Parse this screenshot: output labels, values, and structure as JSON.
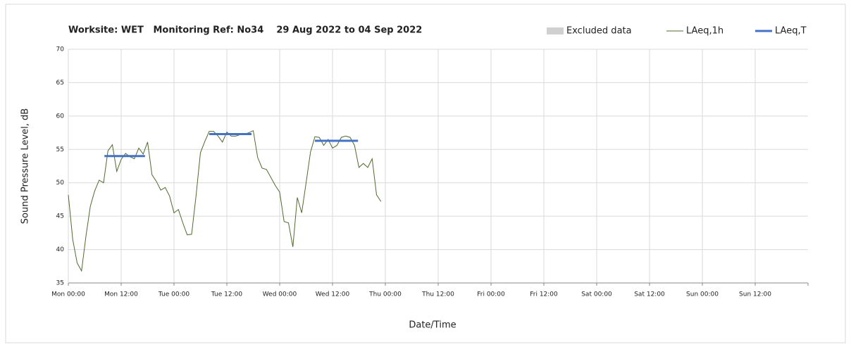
{
  "chart_data": {
    "type": "line",
    "title": "Worksite: WET   Monitoring Ref: No34    29 Aug 2022 to 04 Sep 2022",
    "xlabel": "Date/Time",
    "ylabel": "Sound Pressure Level, dB",
    "xlim": [
      0,
      168
    ],
    "ylim": [
      35,
      70
    ],
    "yticks": [
      35,
      40,
      45,
      50,
      55,
      60,
      65,
      70
    ],
    "xticks": [
      {
        "value": 0,
        "label": "Mon 00:00"
      },
      {
        "value": 12,
        "label": "Mon 12:00"
      },
      {
        "value": 24,
        "label": "Tue 00:00"
      },
      {
        "value": 36,
        "label": "Tue 12:00"
      },
      {
        "value": 48,
        "label": "Wed 00:00"
      },
      {
        "value": 60,
        "label": "Wed 12:00"
      },
      {
        "value": 72,
        "label": "Thu 00:00"
      },
      {
        "value": 84,
        "label": "Thu 12:00"
      },
      {
        "value": 96,
        "label": "Fri 00:00"
      },
      {
        "value": 108,
        "label": "Fri 12:00"
      },
      {
        "value": 120,
        "label": "Sat 00:00"
      },
      {
        "value": 132,
        "label": "Sat 12:00"
      },
      {
        "value": 144,
        "label": "Sun 00:00"
      },
      {
        "value": 156,
        "label": "Sun 12:00"
      }
    ],
    "grid": true,
    "legend": "top-right",
    "series": [
      {
        "name": "Excluded data",
        "color": "#d0d0d0",
        "x": [],
        "values": []
      },
      {
        "name": "LAeq,1h",
        "color": "#4f6b2e",
        "x": [
          0,
          1,
          2,
          3,
          4,
          5,
          6,
          7,
          8,
          9,
          10,
          11,
          12,
          13,
          14,
          15,
          16,
          17,
          18,
          19,
          20,
          21,
          22,
          23,
          24,
          25,
          26,
          27,
          28,
          29,
          30,
          31,
          32,
          33,
          34,
          35,
          36,
          37,
          38,
          39,
          40,
          41,
          42,
          43,
          44,
          45,
          46,
          47,
          48,
          49,
          50,
          51,
          52,
          53,
          54,
          55,
          56,
          57,
          58,
          59,
          60,
          61,
          62,
          63,
          64,
          65,
          66,
          67,
          68,
          69,
          70,
          71
        ],
        "values": [
          48.2,
          41.5,
          38,
          36.8,
          42,
          46.5,
          48.8,
          50.4,
          50,
          54.8,
          55.7,
          51.7,
          53.5,
          54.4,
          53.9,
          53.6,
          55.2,
          54.3,
          56.1,
          51.2,
          50.2,
          48.9,
          49.3,
          48,
          45.5,
          46,
          44,
          42.2,
          42.3,
          48,
          54.5,
          56.2,
          57.7,
          57.7,
          57,
          56.1,
          57.6,
          57,
          57,
          57.2,
          57.3,
          57.5,
          57.8,
          53.8,
          52.2,
          52,
          50.8,
          49.6,
          48.6,
          44.2,
          44,
          40.4,
          47.8,
          45.5,
          50,
          54.6,
          56.9,
          56.8,
          55.6,
          56.5,
          55.2,
          55.6,
          56.8,
          57,
          56.8,
          55.6,
          52.3,
          52.9,
          52.3,
          53.6,
          48.2,
          47.2
        ]
      },
      {
        "name": "LAeq,T",
        "color": "#4472c4",
        "x": [
          8.2,
          17.4,
          null,
          32,
          41.6,
          null,
          56,
          65.8
        ],
        "values": [
          54,
          54,
          null,
          57.3,
          57.3,
          null,
          56.3,
          56.3
        ]
      }
    ]
  }
}
